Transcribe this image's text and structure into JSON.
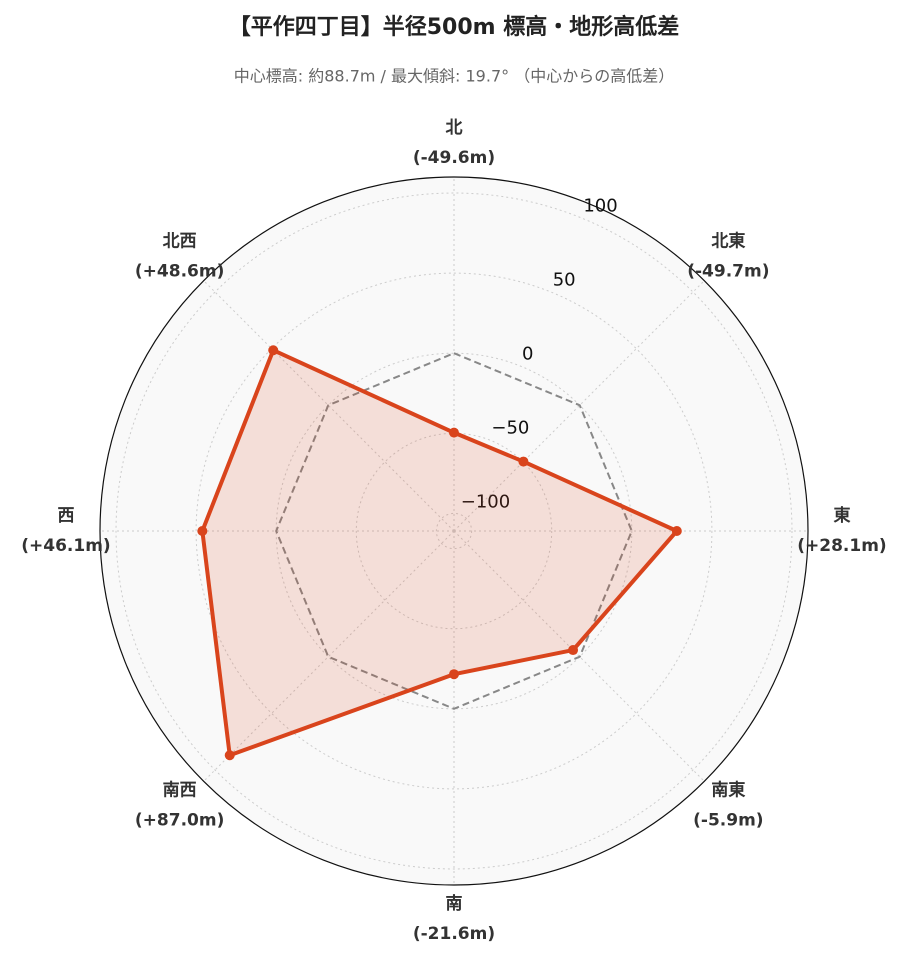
{
  "chart_data": {
    "type": "radar",
    "title": "【平作四丁目】半径500m 標高・地形高低差",
    "subtitle": "中心標高: 約88.7m / 最大傾斜: 19.7° （中心からの高低差）",
    "categories": [
      "北",
      "北東",
      "東",
      "南東",
      "南",
      "南西",
      "西",
      "北西"
    ],
    "values": [
      -49.6,
      -49.7,
      28.1,
      -5.9,
      -21.6,
      87.0,
      46.1,
      48.6
    ],
    "value_labels": [
      "(-49.6m)",
      "(-49.7m)",
      "(+28.1m)",
      "(-5.9m)",
      "(-21.6m)",
      "(+87.0m)",
      "(+46.1m)",
      "(+48.6m)"
    ],
    "color": "#d9441c",
    "reference": 0,
    "ylim": [
      -111,
      110
    ],
    "yticks": [
      {
        "value": -100,
        "label": "−100"
      },
      {
        "value": -50,
        "label": "−50"
      },
      0,
      50,
      100
    ],
    "grid": true
  }
}
